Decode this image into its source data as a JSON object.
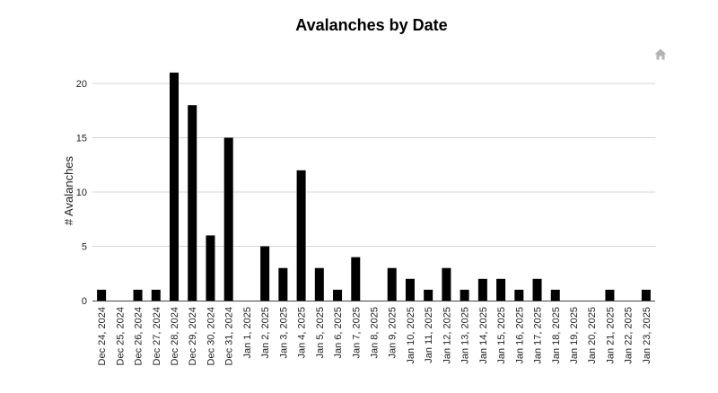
{
  "chart_data": {
    "type": "bar",
    "title": "Avalanches by Date",
    "xlabel": "",
    "ylabel": "# Avalanches",
    "ylim": [
      0,
      23
    ],
    "yticks": [
      0,
      5,
      10,
      15,
      20
    ],
    "grid": true,
    "legend": "none",
    "bar_color": "#000000",
    "categories": [
      "Dec 24, 2024",
      "Dec 25, 2024",
      "Dec 26, 2024",
      "Dec 27, 2024",
      "Dec 28, 2024",
      "Dec 29, 2024",
      "Dec 30, 2024",
      "Dec 31, 2024",
      "Jan 1, 2025",
      "Jan 2, 2025",
      "Jan 3, 2025",
      "Jan 4, 2025",
      "Jan 5, 2025",
      "Jan 6, 2025",
      "Jan 7, 2025",
      "Jan 8, 2025",
      "Jan 9, 2025",
      "Jan 10, 2025",
      "Jan 11, 2025",
      "Jan 12, 2025",
      "Jan 13, 2025",
      "Jan 14, 2025",
      "Jan 15, 2025",
      "Jan 16, 2025",
      "Jan 17, 2025",
      "Jan 18, 2025",
      "Jan 19, 2025",
      "Jan 20, 2025",
      "Jan 21, 2025",
      "Jan 22, 2025",
      "Jan 23, 2025"
    ],
    "values": [
      1,
      0,
      1,
      1,
      21,
      18,
      6,
      15,
      0,
      5,
      3,
      12,
      3,
      1,
      4,
      0,
      3,
      2,
      1,
      3,
      1,
      2,
      2,
      1,
      2,
      1,
      0,
      0,
      1,
      0,
      1
    ]
  },
  "toolbar": {
    "icon": "home-icon",
    "icon_color": "#b3b3b3"
  }
}
